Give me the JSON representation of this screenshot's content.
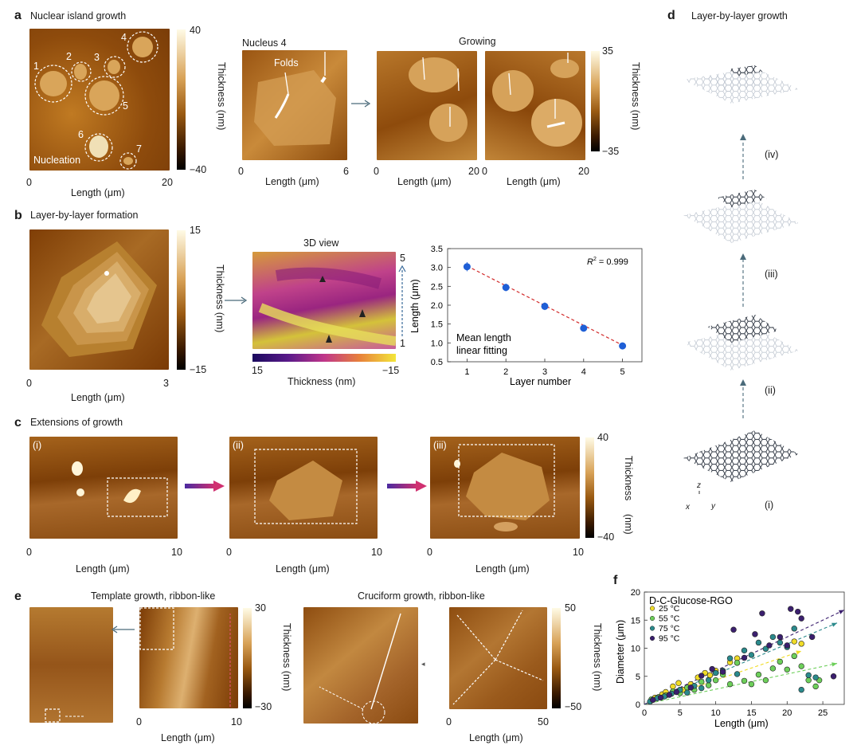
{
  "panels": {
    "a": {
      "letter": "a",
      "title": "Nuclear island growth",
      "nucleus_title": "Nucleus 4",
      "growing_title": "Growing",
      "folds_label": "Folds",
      "nucleation_label": "Nucleation",
      "island_labels": [
        "1",
        "2",
        "3",
        "4",
        "5",
        "6",
        "7"
      ],
      "axis_label": "Length (μm)",
      "thickness_label": "Thickness (nm)",
      "map1_ticks": [
        "0",
        "20"
      ],
      "cbar1_ticks": [
        "40",
        "−40"
      ],
      "map2_ticks": [
        "0",
        "6"
      ],
      "map3_ticks": [
        "0",
        "20"
      ],
      "map4_ticks": [
        "0",
        "20"
      ],
      "cbar2_ticks": [
        "35",
        "−35"
      ]
    },
    "b": {
      "letter": "b",
      "title": "Layer-by-layer formation",
      "view3d_title": "3D view",
      "axis_label": "Length (μm)",
      "thickness_label": "Thickness (nm)",
      "map_ticks": [
        "0",
        "3"
      ],
      "cbar_ticks": [
        "15",
        "−15"
      ],
      "cbar3d_ticks": [
        "15",
        "−15"
      ],
      "zaxis_ticks": [
        "5",
        "1"
      ]
    },
    "c": {
      "letter": "c",
      "title": "Extensions of growth",
      "axis_label": "Length (μm)",
      "thickness_label": "Thickness",
      "thickness_unit": "(nm)",
      "map_labels": [
        "(i)",
        "(ii)",
        "(iii)"
      ],
      "map_ticks": [
        "0",
        "10"
      ],
      "cbar_ticks": [
        "40",
        "−40"
      ]
    },
    "d": {
      "letter": "d",
      "title": "Layer-by-layer growth",
      "stage_labels": [
        "(iv)",
        "(iii)",
        "(ii)",
        "(i)"
      ],
      "axes_labels": [
        "z",
        "x",
        "y"
      ]
    },
    "e": {
      "letter": "e",
      "template_title": "Template growth, ribbon-like",
      "cruciform_title": "Cruciform growth, ribbon-like",
      "axis_label": "Length (μm)",
      "thickness_label": "Thickness (nm)",
      "template_ticks": [
        "0",
        "10"
      ],
      "template_cbar_ticks": [
        "30",
        "−30"
      ],
      "cruciform_ticks": [
        "0",
        "50"
      ],
      "cruciform_cbar_ticks": [
        "50",
        "−50"
      ]
    },
    "f": {
      "letter": "f"
    }
  },
  "chart_data": [
    {
      "type": "scatter",
      "title": "",
      "xlabel": "Layer number",
      "ylabel": "Length (μm)",
      "xlim": [
        0.5,
        5.5
      ],
      "ylim": [
        0.5,
        3.5
      ],
      "x_ticks": [
        "1",
        "2",
        "3",
        "4",
        "5"
      ],
      "y_ticks": [
        "0.5",
        "1.0",
        "1.5",
        "2.0",
        "2.5",
        "3.0",
        "3.5"
      ],
      "annotation": "R² = 0.999",
      "annotation_main": "R",
      "annotation_sup": "2",
      "annotation_rest": " = 0.999",
      "legend_lines": [
        "Mean length",
        "linear fitting"
      ],
      "color": "#1f5fd6",
      "fit_color": "#d22b2b",
      "series": [
        {
          "x": [
            1,
            2,
            3,
            4,
            5
          ],
          "y": [
            3.02,
            2.47,
            1.97,
            1.39,
            0.92
          ],
          "err": [
            0.12,
            0.1,
            0.1,
            0.08,
            0.07
          ]
        }
      ],
      "fit": [
        3.04,
        -0.525
      ]
    },
    {
      "type": "scatter",
      "title": "D-C-Glucose-RGO",
      "xlabel": "Length (μm)",
      "ylabel": "Diameter (μm)",
      "xlim": [
        0,
        28
      ],
      "ylim": [
        0,
        20
      ],
      "x_ticks": [
        "0",
        "5",
        "10",
        "15",
        "20",
        "25"
      ],
      "y_ticks": [
        "0",
        "5",
        "10",
        "15",
        "20"
      ],
      "series": [
        {
          "name": "25 °C",
          "color": "#f0dc28",
          "points": [
            [
              1.5,
              1.2
            ],
            [
              2.5,
              1.8
            ],
            [
              3,
              2.2
            ],
            [
              4,
              3.2
            ],
            [
              4.8,
              3.8
            ],
            [
              5.5,
              2.6
            ],
            [
              6.5,
              3.6
            ],
            [
              7.5,
              4.8
            ],
            [
              8.5,
              5.6
            ],
            [
              9.2,
              5.2
            ],
            [
              10,
              6
            ],
            [
              11,
              5.6
            ],
            [
              12,
              7.5
            ],
            [
              13,
              8.2
            ],
            [
              21,
              11.2
            ],
            [
              22,
              10.8
            ]
          ],
          "trend": [
            [
              0,
              0
            ],
            [
              22,
              9.5
            ]
          ]
        },
        {
          "name": "55 °C",
          "color": "#6dcf5a",
          "points": [
            [
              1,
              0.9
            ],
            [
              2,
              1.3
            ],
            [
              3,
              1.6
            ],
            [
              4,
              2.3
            ],
            [
              5,
              2
            ],
            [
              6,
              3
            ],
            [
              7,
              2.6
            ],
            [
              8,
              4
            ],
            [
              9,
              3.4
            ],
            [
              10,
              4.3
            ],
            [
              11,
              5.3
            ],
            [
              12,
              3.6
            ],
            [
              13,
              7.4
            ],
            [
              14,
              4.2
            ],
            [
              15,
              3.6
            ],
            [
              16,
              5.3
            ],
            [
              17,
              4.3
            ],
            [
              18,
              6.4
            ],
            [
              19,
              7.6
            ],
            [
              20,
              6.2
            ],
            [
              21,
              8.6
            ],
            [
              22,
              6.8
            ],
            [
              23,
              4.3
            ],
            [
              24,
              3.2
            ],
            [
              24.5,
              4.3
            ]
          ],
          "trend": [
            [
              0,
              0
            ],
            [
              27,
              7.3
            ]
          ]
        },
        {
          "name": "75 °C",
          "color": "#2b8a8c",
          "points": [
            [
              0.8,
              0.5
            ],
            [
              1.8,
              1.1
            ],
            [
              2.8,
              1.4
            ],
            [
              3.8,
              1.9
            ],
            [
              5,
              2.6
            ],
            [
              6,
              2.1
            ],
            [
              7,
              3.3
            ],
            [
              8,
              2.9
            ],
            [
              9,
              4.3
            ],
            [
              10,
              5.6
            ],
            [
              11,
              6
            ],
            [
              12,
              8.2
            ],
            [
              13,
              5.4
            ],
            [
              14,
              9.6
            ],
            [
              15,
              8.8
            ],
            [
              16,
              11
            ],
            [
              17,
              9.9
            ],
            [
              18,
              12
            ],
            [
              19,
              11
            ],
            [
              20,
              10.2
            ],
            [
              21,
              13.5
            ],
            [
              22,
              2.6
            ],
            [
              23,
              5.2
            ],
            [
              24,
              4.8
            ]
          ],
          "trend": [
            [
              0,
              0
            ],
            [
              27,
              14.5
            ]
          ]
        },
        {
          "name": "95 °C",
          "color": "#3b1f6e",
          "points": [
            [
              1.2,
              0.8
            ],
            [
              2.3,
              1.2
            ],
            [
              3.5,
              1.7
            ],
            [
              4.5,
              2.2
            ],
            [
              6.5,
              3
            ],
            [
              8,
              5.1
            ],
            [
              9.5,
              6.3
            ],
            [
              11,
              5.8
            ],
            [
              12.5,
              13.3
            ],
            [
              14,
              8.3
            ],
            [
              15.5,
              12.5
            ],
            [
              16.5,
              16.2
            ],
            [
              17.5,
              10.5
            ],
            [
              19,
              12
            ],
            [
              20,
              10.5
            ],
            [
              20.5,
              17
            ],
            [
              21.5,
              16.5
            ],
            [
              22,
              15.3
            ],
            [
              23.5,
              12
            ],
            [
              26.5,
              5
            ]
          ],
          "trend": [
            [
              0,
              0
            ],
            [
              28,
              16.8
            ]
          ]
        }
      ]
    }
  ]
}
